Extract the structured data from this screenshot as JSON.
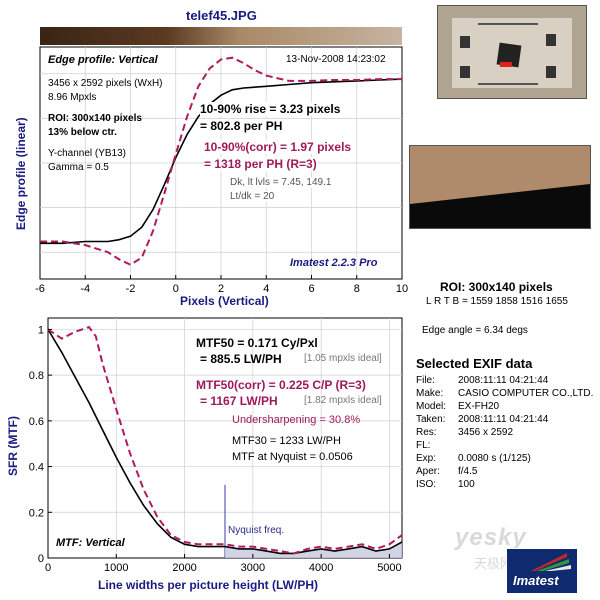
{
  "file_title": "telef45.JPG",
  "edge": {
    "panel_title": "Edge profile: Vertical",
    "date": "13-Nov-2008 14:23:02",
    "info": [
      "3456 x 2592 pixels (WxH)",
      "8.96 Mpxls"
    ],
    "roi": [
      "ROI: 300x140 pixels",
      "13% below ctr."
    ],
    "channel": [
      "Y-channel  (YB13)",
      "Gamma = 0.5"
    ],
    "rise": [
      "10-90% rise = 3.23 pixels",
      "= 802.8 per PH"
    ],
    "rise_corr": [
      "10-90%(corr) = 1.97 pixels",
      "= 1318 per PH  (R=3)"
    ],
    "dk": [
      "Dk, lt lvls = 7.45, 149.1",
      "Lt/dk = 20"
    ],
    "watermark": "Imatest 2.2.3 Pro",
    "ylabel": "Edge profile (linear)",
    "xlabel": "Pixels (Vertical)"
  },
  "mtf": {
    "panel_title": "MTF: Vertical",
    "mtf50": [
      "MTF50 = 0.171 Cy/Pxl",
      "= 885.5 LW/PH"
    ],
    "mtf50_ideal": "[1.05 mpxls ideal]",
    "mtf50_corr": [
      "MTF50(corr) = 0.225 C/P  (R=3)",
      "= 1167 LW/PH"
    ],
    "mtf50_corr_ideal": "[1.82 mpxls ideal]",
    "undersharpening": "Undersharpening = 30.8%",
    "mtf30": "MTF30 = 1233 LW/PH",
    "nyquist_mtf": "MTF at Nyquist = 0.0506",
    "nyquist_label": "Nyquist freq.",
    "ylabel": "SFR (MTF)",
    "xlabel": "Line widths per picture height (LW/PH)"
  },
  "side": {
    "roi_title": "ROI: 300x140 pixels",
    "roi_coords": "L R  T B = 1559 1858  1516 1655",
    "edge_angle": "Edge angle = 6.34 degs",
    "exif_title": "Selected EXIF data",
    "exif": [
      {
        "k": "File:",
        "v": "2008:11:11 04:21:44"
      },
      {
        "k": "Make:",
        "v": "CASIO COMPUTER CO.,LTD."
      },
      {
        "k": "Model:",
        "v": "EX-FH20"
      },
      {
        "k": "Taken:",
        "v": "2008:11:11 04:21:44"
      },
      {
        "k": "Res:",
        "v": "3456 x 2592"
      },
      {
        "k": "FL:",
        "v": ""
      },
      {
        "k": "Exp:",
        "v": "0.0080 s  (1/125)"
      },
      {
        "k": "Aper:",
        "v": "f/4.5"
      },
      {
        "k": "ISO:",
        "v": "100"
      }
    ],
    "logo_text": "Imatest",
    "yesky_text": "yesky",
    "yesky_sub": "天极网"
  },
  "colors": {
    "measured": "#000000",
    "corrected": "#b01a5e",
    "label_accent": "#a0195a",
    "title_blue": "#1a1a80"
  },
  "chart_data": [
    {
      "type": "line",
      "title": "Edge profile: Vertical",
      "xlabel": "Pixels (Vertical)",
      "ylabel": "Edge profile (linear)",
      "xlim": [
        -6,
        10
      ],
      "x_ticks": [
        -6,
        -4,
        -2,
        0,
        2,
        4,
        6,
        8,
        10
      ],
      "grid": true,
      "series": [
        {
          "style": "solid-black",
          "x": [
            -6,
            -5,
            -4,
            -3,
            -2.5,
            -2,
            -1.5,
            -1,
            -0.5,
            0,
            0.5,
            1,
            1.5,
            2,
            2.5,
            3,
            4,
            5,
            6,
            7,
            8,
            9,
            10
          ],
          "y": [
            0.05,
            0.05,
            0.06,
            0.06,
            0.07,
            0.09,
            0.14,
            0.24,
            0.38,
            0.53,
            0.66,
            0.76,
            0.83,
            0.88,
            0.91,
            0.92,
            0.93,
            0.94,
            0.95,
            0.955,
            0.96,
            0.965,
            0.97
          ]
        },
        {
          "style": "dashed-magenta",
          "x": [
            -6,
            -5,
            -4,
            -3.5,
            -3,
            -2.5,
            -2,
            -1.5,
            -1,
            -0.5,
            0,
            0.5,
            1,
            1.5,
            2,
            2.5,
            3,
            3.5,
            4,
            5,
            6,
            7,
            8,
            9,
            10
          ],
          "y": [
            0.06,
            0.06,
            0.04,
            0.02,
            0.0,
            -0.04,
            -0.07,
            -0.03,
            0.12,
            0.33,
            0.55,
            0.76,
            0.93,
            1.03,
            1.08,
            1.09,
            1.06,
            1.02,
            0.99,
            0.96,
            0.96,
            0.965,
            0.965,
            0.97,
            0.97
          ]
        }
      ]
    },
    {
      "type": "line",
      "title": "MTF: Vertical",
      "xlabel": "Line widths per picture height (LW/PH)",
      "ylabel": "SFR (MTF)",
      "xlim": [
        0,
        5184
      ],
      "ylim": [
        0,
        1
      ],
      "x_ticks": [
        0,
        1000,
        2000,
        3000,
        4000,
        5000
      ],
      "y_ticks": [
        0,
        0.2,
        0.4,
        0.6,
        0.8,
        1
      ],
      "grid": true,
      "nyquist": 2592,
      "series": [
        {
          "style": "solid-black",
          "x": [
            0,
            200,
            400,
            600,
            800,
            1000,
            1200,
            1400,
            1600,
            1800,
            2000,
            2200,
            2400,
            2592,
            2800,
            3000,
            3200,
            3400,
            3600,
            3800,
            4000,
            4200,
            4400,
            4600,
            4800,
            5000,
            5184
          ],
          "y": [
            1.0,
            0.9,
            0.79,
            0.68,
            0.56,
            0.44,
            0.33,
            0.23,
            0.15,
            0.09,
            0.06,
            0.05,
            0.05,
            0.05,
            0.04,
            0.04,
            0.03,
            0.02,
            0.02,
            0.03,
            0.04,
            0.03,
            0.04,
            0.05,
            0.03,
            0.04,
            0.07
          ]
        },
        {
          "style": "dashed-magenta",
          "x": [
            0,
            200,
            400,
            600,
            700,
            800,
            1000,
            1200,
            1400,
            1600,
            1800,
            2000,
            2200,
            2400,
            2592,
            2800,
            3000,
            3200,
            3400,
            3600,
            3800,
            4000,
            4200,
            4400,
            4600,
            4800,
            5000,
            5184
          ],
          "y": [
            1.0,
            0.96,
            0.99,
            1.01,
            0.97,
            0.85,
            0.65,
            0.46,
            0.3,
            0.18,
            0.1,
            0.07,
            0.06,
            0.06,
            0.06,
            0.05,
            0.05,
            0.04,
            0.03,
            0.02,
            0.04,
            0.05,
            0.04,
            0.05,
            0.06,
            0.04,
            0.06,
            0.1
          ]
        }
      ]
    }
  ]
}
